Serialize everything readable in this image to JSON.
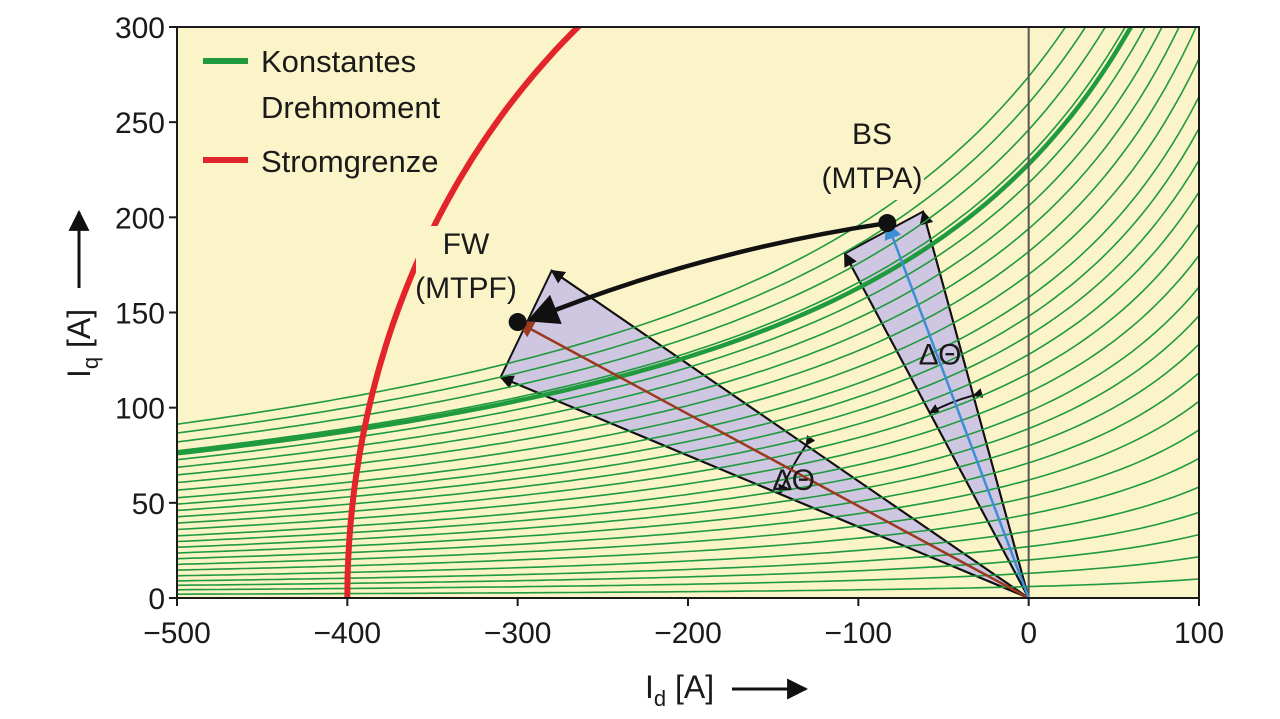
{
  "chart_data": {
    "type": "line",
    "xlabel": "I",
    "xlabel_sub": "d",
    "xlabel_unit": "[A]",
    "ylabel": "I",
    "ylabel_sub": "q",
    "ylabel_unit": "[A]",
    "xlim": [
      -500,
      100
    ],
    "ylim": [
      0,
      300
    ],
    "xticks": [
      "−500",
      "−400",
      "−300",
      "−200",
      "−100",
      "0",
      "100"
    ],
    "xtick_values": [
      -500,
      -400,
      -300,
      -200,
      -100,
      0,
      100
    ],
    "yticks": [
      "0",
      "50",
      "100",
      "150",
      "200",
      "250",
      "300"
    ],
    "ytick_values": [
      0,
      50,
      100,
      150,
      200,
      250,
      300
    ],
    "grid": false,
    "legend_position": "top-left",
    "legend": [
      {
        "label_line1": "Konstantes",
        "label_line2": "Drehmoment",
        "color": "#1f9a3c"
      },
      {
        "label_line1": "Stromgrenze",
        "label_line2": "",
        "color": "#e3242b"
      }
    ],
    "torque_curves": {
      "color": "#1f9a3c",
      "model": "iq = T / (1 - id / 250)",
      "torque_levels": [
        6,
        13,
        20,
        27,
        35,
        44,
        53,
        62,
        71,
        80,
        89,
        98,
        108,
        118,
        128,
        138,
        148,
        158,
        170,
        182,
        194,
        206,
        218,
        232,
        246,
        260,
        274
      ],
      "highlighted_level": 228
    },
    "current_limit": {
      "color": "#e3242b",
      "radius": 400,
      "center_id": 0
    },
    "operating_points": [
      {
        "name": "FW",
        "label_line1": "FW",
        "label_line2": "(MTPF)",
        "id": -300,
        "iq": 145,
        "vector_color": "#9b3a1e"
      },
      {
        "name": "BS",
        "label_line1": "BS",
        "label_line2": "(MTPA)",
        "id": -83,
        "iq": 197,
        "vector_color": "#3b8fd4"
      }
    ],
    "trajectory": {
      "from": "BS",
      "to": "FW",
      "color": "#111111"
    },
    "delta_theta_label": "ΔΘ",
    "wedges": [
      {
        "for": "FW",
        "vertices": [
          [
            0,
            0
          ],
          [
            -280,
            172
          ],
          [
            -310,
            116
          ]
        ],
        "angle_label_at": [
          -140,
          62
        ]
      },
      {
        "for": "BS",
        "vertices": [
          [
            0,
            0
          ],
          [
            -62,
            203
          ],
          [
            -108,
            181
          ]
        ],
        "angle_label_at": [
          -54,
          128
        ]
      }
    ],
    "zero_line_color": "#555555",
    "plot_background": "#fbf4c9",
    "wedge_fill": "#cfc6e2"
  }
}
